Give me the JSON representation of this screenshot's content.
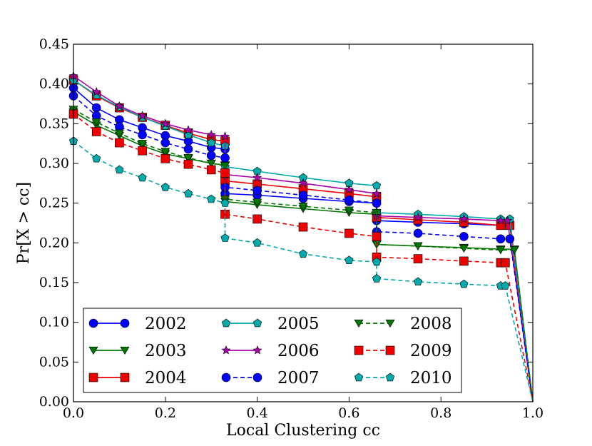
{
  "chart_data": {
    "type": "line",
    "title": "",
    "xlabel": "Local Clustering cc",
    "ylabel": "Pr[X > cc]",
    "xlim": [
      0.0,
      1.0
    ],
    "ylim": [
      0.0,
      0.45
    ],
    "xticks": [
      "0.0",
      "0.2",
      "0.4",
      "0.6",
      "0.8",
      "1.0"
    ],
    "yticks": [
      "0.00",
      "0.05",
      "0.10",
      "0.15",
      "0.20",
      "0.25",
      "0.30",
      "0.35",
      "0.40",
      "0.45"
    ],
    "grid": false,
    "legend_position": "lower-left",
    "series": [
      {
        "name": "2002",
        "color": "#0000ff",
        "marker": "circle",
        "linestyle": "solid",
        "x": [
          0.0,
          0.05,
          0.1,
          0.15,
          0.2,
          0.25,
          0.3,
          0.33,
          0.33,
          0.4,
          0.5,
          0.6,
          0.66,
          0.66,
          0.75,
          0.85,
          0.93,
          0.95,
          1.0
        ],
        "y": [
          0.395,
          0.37,
          0.355,
          0.345,
          0.335,
          0.328,
          0.32,
          0.318,
          0.262,
          0.26,
          0.256,
          0.252,
          0.25,
          0.228,
          0.226,
          0.224,
          0.222,
          0.222,
          0.0
        ]
      },
      {
        "name": "2003",
        "color": "#007700",
        "marker": "triangle-down",
        "linestyle": "solid",
        "x": [
          0.0,
          0.05,
          0.1,
          0.15,
          0.2,
          0.25,
          0.3,
          0.33,
          0.33,
          0.4,
          0.5,
          0.6,
          0.66,
          0.66,
          0.75,
          0.85,
          0.93,
          0.96,
          1.0
        ],
        "y": [
          0.365,
          0.348,
          0.335,
          0.322,
          0.312,
          0.306,
          0.3,
          0.298,
          0.252,
          0.248,
          0.243,
          0.238,
          0.236,
          0.198,
          0.196,
          0.194,
          0.192,
          0.192,
          0.0
        ]
      },
      {
        "name": "2004",
        "color": "#ee0000",
        "marker": "square",
        "linestyle": "solid",
        "x": [
          0.0,
          0.05,
          0.1,
          0.15,
          0.2,
          0.25,
          0.3,
          0.33,
          0.33,
          0.4,
          0.5,
          0.6,
          0.66,
          0.66,
          0.75,
          0.85,
          0.93,
          0.95,
          1.0
        ],
        "y": [
          0.405,
          0.385,
          0.37,
          0.358,
          0.348,
          0.338,
          0.33,
          0.328,
          0.278,
          0.274,
          0.268,
          0.262,
          0.258,
          0.232,
          0.229,
          0.226,
          0.222,
          0.222,
          0.0
        ]
      },
      {
        "name": "2005",
        "color": "#00aaaa",
        "marker": "pentagon",
        "linestyle": "solid",
        "x": [
          0.0,
          0.05,
          0.1,
          0.15,
          0.2,
          0.25,
          0.3,
          0.33,
          0.33,
          0.4,
          0.5,
          0.6,
          0.66,
          0.66,
          0.75,
          0.85,
          0.93,
          0.95,
          1.0
        ],
        "y": [
          0.405,
          0.386,
          0.371,
          0.358,
          0.347,
          0.336,
          0.326,
          0.322,
          0.296,
          0.29,
          0.282,
          0.275,
          0.272,
          0.238,
          0.236,
          0.233,
          0.23,
          0.23,
          0.0
        ]
      },
      {
        "name": "2006",
        "color": "#aa00aa",
        "marker": "star",
        "linestyle": "solid",
        "x": [
          0.0,
          0.05,
          0.1,
          0.15,
          0.2,
          0.25,
          0.3,
          0.33,
          0.33,
          0.4,
          0.5,
          0.6,
          0.66,
          0.66,
          0.75,
          0.85,
          0.93,
          0.945,
          1.0
        ],
        "y": [
          0.41,
          0.39,
          0.372,
          0.36,
          0.35,
          0.342,
          0.336,
          0.334,
          0.286,
          0.282,
          0.275,
          0.267,
          0.262,
          0.234,
          0.232,
          0.23,
          0.228,
          0.228,
          0.0
        ]
      },
      {
        "name": "2007",
        "color": "#0000ff",
        "marker": "circle",
        "linestyle": "dashed",
        "x": [
          0.0,
          0.05,
          0.1,
          0.15,
          0.2,
          0.25,
          0.3,
          0.33,
          0.33,
          0.4,
          0.5,
          0.6,
          0.66,
          0.66,
          0.75,
          0.85,
          0.93,
          0.95,
          1.0
        ],
        "y": [
          0.385,
          0.36,
          0.346,
          0.336,
          0.326,
          0.318,
          0.31,
          0.307,
          0.27,
          0.266,
          0.26,
          0.254,
          0.25,
          0.214,
          0.212,
          0.208,
          0.205,
          0.205,
          0.0
        ]
      },
      {
        "name": "2008",
        "color": "#007700",
        "marker": "triangle-down",
        "linestyle": "dashed",
        "x": [
          0.0,
          0.05,
          0.1,
          0.15,
          0.2,
          0.25,
          0.3,
          0.33,
          0.33,
          0.4,
          0.5,
          0.6,
          0.66,
          0.66,
          0.75,
          0.85,
          0.93,
          0.96,
          1.0
        ],
        "y": [
          0.368,
          0.352,
          0.338,
          0.325,
          0.315,
          0.307,
          0.3,
          0.297,
          0.255,
          0.251,
          0.246,
          0.241,
          0.238,
          0.198,
          0.196,
          0.193,
          0.191,
          0.191,
          0.0
        ]
      },
      {
        "name": "2009",
        "color": "#ee0000",
        "marker": "square",
        "linestyle": "dashed",
        "x": [
          0.0,
          0.05,
          0.1,
          0.15,
          0.2,
          0.25,
          0.3,
          0.33,
          0.33,
          0.4,
          0.5,
          0.6,
          0.66,
          0.66,
          0.75,
          0.85,
          0.93,
          0.94,
          1.0
        ],
        "y": [
          0.362,
          0.34,
          0.326,
          0.316,
          0.306,
          0.299,
          0.292,
          0.288,
          0.236,
          0.23,
          0.22,
          0.212,
          0.208,
          0.182,
          0.18,
          0.177,
          0.175,
          0.175,
          0.0
        ]
      },
      {
        "name": "2010",
        "color": "#00aaaa",
        "marker": "pentagon",
        "linestyle": "dashed",
        "x": [
          0.0,
          0.05,
          0.1,
          0.15,
          0.2,
          0.25,
          0.3,
          0.33,
          0.33,
          0.4,
          0.5,
          0.6,
          0.66,
          0.66,
          0.75,
          0.85,
          0.93,
          0.94,
          1.0
        ],
        "y": [
          0.328,
          0.306,
          0.292,
          0.282,
          0.27,
          0.262,
          0.255,
          0.25,
          0.206,
          0.2,
          0.186,
          0.178,
          0.176,
          0.155,
          0.151,
          0.148,
          0.146,
          0.146,
          0.0
        ]
      }
    ]
  }
}
